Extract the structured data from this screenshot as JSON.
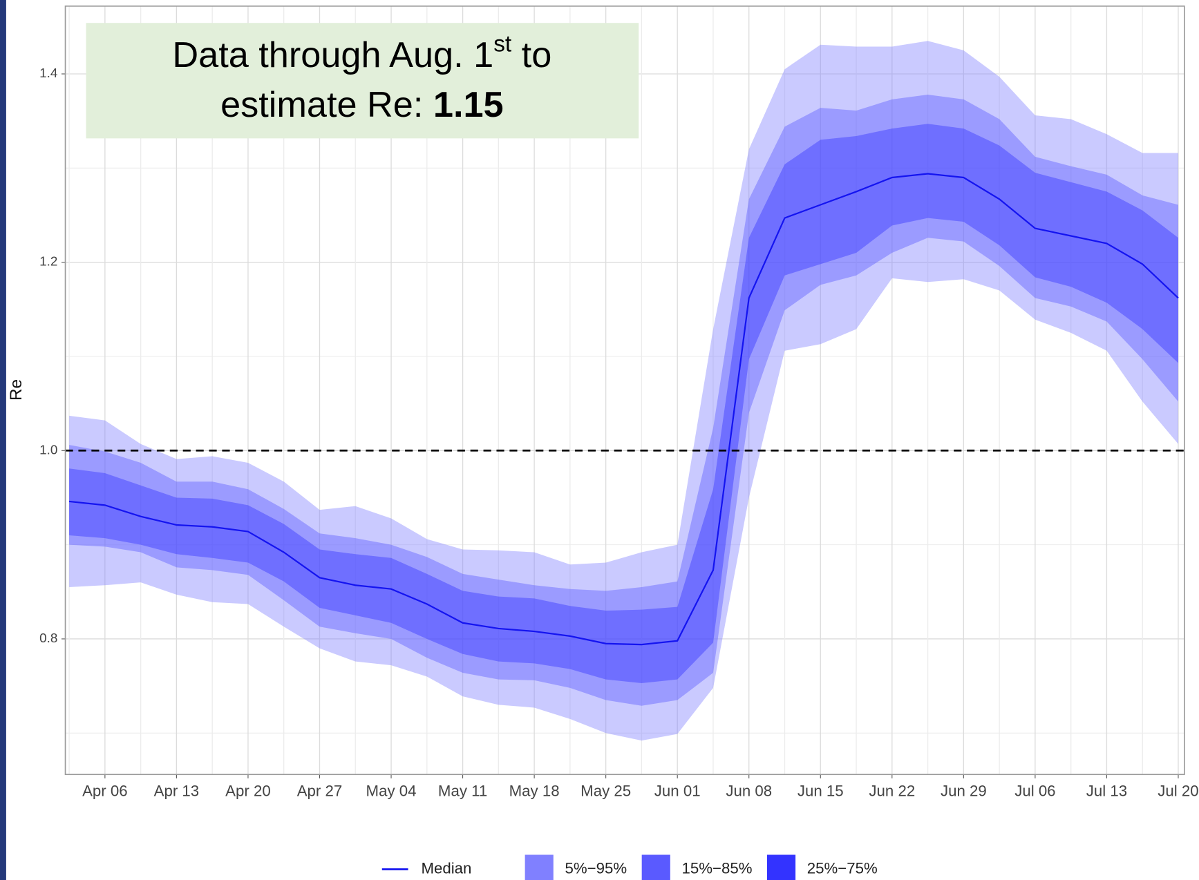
{
  "chart_data": {
    "type": "line",
    "y_axis_label": "Re",
    "annotation": {
      "line1": "Data through Aug. 1",
      "sup": "st",
      "line1_end": " to",
      "line2": "estimate Re: ",
      "value": "1.15"
    },
    "categories": [
      null,
      "Apr 06",
      null,
      "Apr 13",
      null,
      "Apr 20",
      null,
      "Apr 27",
      null,
      "May 04",
      null,
      "May 11",
      null,
      "May 18",
      null,
      "May 25",
      null,
      "Jun 01",
      null,
      "Jun 08",
      null,
      "Jun 15",
      null,
      "Jun 22",
      null,
      "Jun 29",
      null,
      "Jul 06",
      null,
      "Jul 13",
      null,
      "Jul 20"
    ],
    "series": [
      {
        "name": "Median",
        "color": "#1414f0",
        "values": [
          0.946,
          0.942,
          0.93,
          0.921,
          0.919,
          0.914,
          0.892,
          0.865,
          0.857,
          0.853,
          0.837,
          0.817,
          0.811,
          0.808,
          0.803,
          0.795,
          0.794,
          0.798,
          0.873,
          1.162,
          1.247,
          1.261,
          1.275,
          1.29,
          1.294,
          1.29,
          1.267,
          1.236,
          1.228,
          1.22,
          1.198,
          1.162
        ]
      }
    ],
    "bands": [
      {
        "name": "5%−95%",
        "color": "#8080ff",
        "upper": [
          1.037,
          1.032,
          1.007,
          0.991,
          0.994,
          0.987,
          0.967,
          0.937,
          0.941,
          0.928,
          0.906,
          0.895,
          0.894,
          0.892,
          0.879,
          0.881,
          0.892,
          0.9,
          1.129,
          1.32,
          1.405,
          1.431,
          1.429,
          1.429,
          1.435,
          1.425,
          1.397,
          1.356,
          1.352,
          1.336,
          1.316,
          1.316
        ],
        "lower": [
          0.855,
          0.857,
          0.86,
          0.847,
          0.839,
          0.837,
          0.813,
          0.79,
          0.776,
          0.772,
          0.76,
          0.739,
          0.73,
          0.727,
          0.715,
          0.7,
          0.692,
          0.699,
          0.748,
          0.95,
          1.106,
          1.113,
          1.129,
          1.183,
          1.179,
          1.182,
          1.17,
          1.139,
          1.125,
          1.106,
          1.052,
          1.007
        ]
      },
      {
        "name": "15%−85%",
        "color": "#5a5aff",
        "upper": [
          1.006,
          0.999,
          0.987,
          0.967,
          0.967,
          0.959,
          0.938,
          0.912,
          0.907,
          0.9,
          0.887,
          0.869,
          0.863,
          0.857,
          0.853,
          0.851,
          0.855,
          0.861,
          1.024,
          1.267,
          1.344,
          1.364,
          1.361,
          1.373,
          1.378,
          1.373,
          1.352,
          1.312,
          1.302,
          1.293,
          1.271,
          1.261
        ],
        "lower": [
          0.9,
          0.898,
          0.892,
          0.876,
          0.873,
          0.868,
          0.841,
          0.813,
          0.806,
          0.8,
          0.78,
          0.764,
          0.757,
          0.756,
          0.748,
          0.735,
          0.729,
          0.735,
          0.764,
          1.04,
          1.149,
          1.176,
          1.186,
          1.21,
          1.226,
          1.222,
          1.196,
          1.162,
          1.153,
          1.137,
          1.097,
          1.052
        ]
      },
      {
        "name": "25%−75%",
        "color": "#3333ff",
        "upper": [
          0.981,
          0.976,
          0.963,
          0.95,
          0.949,
          0.942,
          0.922,
          0.895,
          0.89,
          0.886,
          0.869,
          0.851,
          0.845,
          0.843,
          0.835,
          0.83,
          0.831,
          0.834,
          0.959,
          1.226,
          1.304,
          1.33,
          1.334,
          1.342,
          1.347,
          1.342,
          1.324,
          1.295,
          1.285,
          1.275,
          1.255,
          1.226
        ],
        "lower": [
          0.91,
          0.907,
          0.9,
          0.89,
          0.886,
          0.881,
          0.861,
          0.833,
          0.825,
          0.817,
          0.8,
          0.784,
          0.776,
          0.774,
          0.768,
          0.757,
          0.753,
          0.757,
          0.796,
          1.097,
          1.186,
          1.198,
          1.21,
          1.239,
          1.247,
          1.243,
          1.218,
          1.184,
          1.174,
          1.157,
          1.129,
          1.093
        ]
      }
    ],
    "ylim": [
      0.656,
      1.472
    ],
    "yticks": [
      0.8,
      {
        "value": 1,
        "label": "1.0"
      },
      1.2,
      1.4
    ],
    "hline": 1,
    "grid": true
  }
}
